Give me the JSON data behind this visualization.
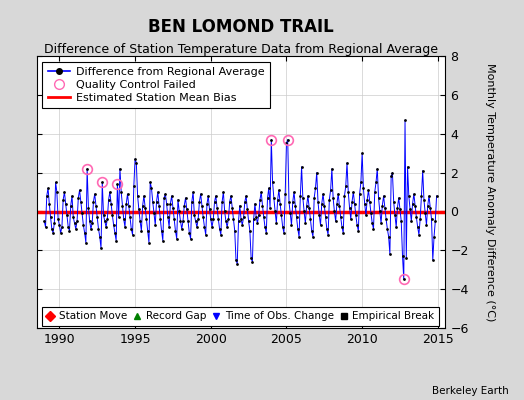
{
  "title": "BEN LOMOND TRAIL",
  "subtitle": "Difference of Station Temperature Data from Regional Average",
  "ylabel": "Monthly Temperature Anomaly Difference (°C)",
  "ylim": [
    -6,
    8
  ],
  "xlim": [
    1988.5,
    2015.5
  ],
  "xticks": [
    1990,
    1995,
    2000,
    2005,
    2010,
    2015
  ],
  "yticks": [
    -6,
    -4,
    -2,
    0,
    2,
    4,
    6,
    8
  ],
  "bias_value": -0.05,
  "background_color": "#d8d8d8",
  "plot_bg_color": "#ffffff",
  "line_color": "#0000ff",
  "bias_color": "#ff0000",
  "qc_marker_color": "#ff69b4",
  "marker_color": "#000000",
  "berkeley_earth_text": "Berkeley Earth",
  "time_series": [
    [
      1989.0,
      -0.5
    ],
    [
      1989.083,
      -0.8
    ],
    [
      1989.167,
      0.8
    ],
    [
      1989.25,
      1.2
    ],
    [
      1989.333,
      0.4
    ],
    [
      1989.417,
      -0.3
    ],
    [
      1989.5,
      -0.9
    ],
    [
      1989.583,
      -1.1
    ],
    [
      1989.667,
      -0.6
    ],
    [
      1989.75,
      1.5
    ],
    [
      1989.833,
      1.0
    ],
    [
      1989.917,
      -0.4
    ],
    [
      1990.0,
      -0.7
    ],
    [
      1990.083,
      -1.1
    ],
    [
      1990.167,
      -0.8
    ],
    [
      1990.25,
      0.6
    ],
    [
      1990.333,
      1.0
    ],
    [
      1990.417,
      0.4
    ],
    [
      1990.5,
      -0.2
    ],
    [
      1990.583,
      -0.8
    ],
    [
      1990.667,
      -1.0
    ],
    [
      1990.75,
      0.3
    ],
    [
      1990.833,
      0.8
    ],
    [
      1990.917,
      -0.3
    ],
    [
      1991.0,
      -0.6
    ],
    [
      1991.083,
      -0.9
    ],
    [
      1991.167,
      -0.5
    ],
    [
      1991.25,
      0.7
    ],
    [
      1991.333,
      1.1
    ],
    [
      1991.417,
      0.5
    ],
    [
      1991.5,
      -0.1
    ],
    [
      1991.583,
      -0.7
    ],
    [
      1991.667,
      -1.1
    ],
    [
      1991.75,
      -1.6
    ],
    [
      1991.833,
      2.2
    ],
    [
      1991.917,
      0.2
    ],
    [
      1992.0,
      -0.5
    ],
    [
      1992.083,
      -0.9
    ],
    [
      1992.167,
      -0.6
    ],
    [
      1992.25,
      0.5
    ],
    [
      1992.333,
      0.9
    ],
    [
      1992.417,
      0.3
    ],
    [
      1992.5,
      -0.3
    ],
    [
      1992.583,
      -0.9
    ],
    [
      1992.667,
      -1.3
    ],
    [
      1992.75,
      -1.9
    ],
    [
      1992.833,
      1.5
    ],
    [
      1992.917,
      -0.2
    ],
    [
      1993.0,
      -0.5
    ],
    [
      1993.083,
      -0.8
    ],
    [
      1993.167,
      -0.4
    ],
    [
      1993.25,
      0.6
    ],
    [
      1993.333,
      1.0
    ],
    [
      1993.417,
      0.4
    ],
    [
      1993.5,
      -0.2
    ],
    [
      1993.583,
      -0.7
    ],
    [
      1993.667,
      -1.1
    ],
    [
      1993.75,
      -1.5
    ],
    [
      1993.833,
      1.4
    ],
    [
      1993.917,
      -0.3
    ],
    [
      1994.0,
      2.2
    ],
    [
      1994.083,
      1.0
    ],
    [
      1994.167,
      0.3
    ],
    [
      1994.25,
      -0.4
    ],
    [
      1994.333,
      -0.8
    ],
    [
      1994.417,
      0.4
    ],
    [
      1994.5,
      0.9
    ],
    [
      1994.583,
      0.3
    ],
    [
      1994.667,
      -0.3
    ],
    [
      1994.75,
      -0.9
    ],
    [
      1994.833,
      -1.2
    ],
    [
      1994.917,
      1.3
    ],
    [
      1995.0,
      2.7
    ],
    [
      1995.083,
      2.5
    ],
    [
      1995.167,
      0.8
    ],
    [
      1995.25,
      0.1
    ],
    [
      1995.333,
      -0.5
    ],
    [
      1995.417,
      -1.0
    ],
    [
      1995.5,
      0.3
    ],
    [
      1995.583,
      0.8
    ],
    [
      1995.667,
      0.2
    ],
    [
      1995.75,
      -0.4
    ],
    [
      1995.833,
      -1.0
    ],
    [
      1995.917,
      -1.6
    ],
    [
      1996.0,
      1.5
    ],
    [
      1996.083,
      1.2
    ],
    [
      1996.167,
      0.5
    ],
    [
      1996.25,
      -0.1
    ],
    [
      1996.333,
      -0.7
    ],
    [
      1996.417,
      0.5
    ],
    [
      1996.5,
      1.0
    ],
    [
      1996.583,
      0.3
    ],
    [
      1996.667,
      -0.4
    ],
    [
      1996.75,
      -1.0
    ],
    [
      1996.833,
      -1.5
    ],
    [
      1996.917,
      0.7
    ],
    [
      1997.0,
      0.9
    ],
    [
      1997.083,
      0.4
    ],
    [
      1997.167,
      -0.3
    ],
    [
      1997.25,
      -0.8
    ],
    [
      1997.333,
      0.4
    ],
    [
      1997.417,
      0.8
    ],
    [
      1997.5,
      0.2
    ],
    [
      1997.583,
      -0.4
    ],
    [
      1997.667,
      -1.0
    ],
    [
      1997.75,
      -1.4
    ],
    [
      1997.833,
      0.6
    ],
    [
      1997.917,
      0.0
    ],
    [
      1998.0,
      -0.5
    ],
    [
      1998.083,
      -0.9
    ],
    [
      1998.167,
      -0.5
    ],
    [
      1998.25,
      0.3
    ],
    [
      1998.333,
      0.7
    ],
    [
      1998.417,
      0.1
    ],
    [
      1998.5,
      -0.5
    ],
    [
      1998.583,
      -1.1
    ],
    [
      1998.667,
      -1.4
    ],
    [
      1998.75,
      0.5
    ],
    [
      1998.833,
      1.0
    ],
    [
      1998.917,
      -0.2
    ],
    [
      1999.0,
      -0.5
    ],
    [
      1999.083,
      -0.8
    ],
    [
      1999.167,
      -0.4
    ],
    [
      1999.25,
      0.5
    ],
    [
      1999.333,
      0.9
    ],
    [
      1999.417,
      0.3
    ],
    [
      1999.5,
      -0.3
    ],
    [
      1999.583,
      -0.8
    ],
    [
      1999.667,
      -1.2
    ],
    [
      1999.75,
      0.4
    ],
    [
      1999.833,
      0.8
    ],
    [
      1999.917,
      0.1
    ],
    [
      2000.0,
      -0.4
    ],
    [
      2000.083,
      -0.8
    ],
    [
      2000.167,
      -0.4
    ],
    [
      2000.25,
      0.5
    ],
    [
      2000.333,
      0.8
    ],
    [
      2000.417,
      0.2
    ],
    [
      2000.5,
      -0.4
    ],
    [
      2000.583,
      -0.9
    ],
    [
      2000.667,
      -1.2
    ],
    [
      2000.75,
      0.5
    ],
    [
      2000.833,
      1.0
    ],
    [
      2000.917,
      0.0
    ],
    [
      2001.0,
      -0.5
    ],
    [
      2001.083,
      -0.8
    ],
    [
      2001.167,
      -0.4
    ],
    [
      2001.25,
      0.5
    ],
    [
      2001.333,
      0.8
    ],
    [
      2001.417,
      0.2
    ],
    [
      2001.5,
      -0.4
    ],
    [
      2001.583,
      -1.0
    ],
    [
      2001.667,
      -2.5
    ],
    [
      2001.75,
      -2.7
    ],
    [
      2001.833,
      -0.5
    ],
    [
      2001.917,
      0.3
    ],
    [
      2002.0,
      -0.4
    ],
    [
      2002.083,
      -0.7
    ],
    [
      2002.167,
      -0.3
    ],
    [
      2002.25,
      0.5
    ],
    [
      2002.333,
      0.8
    ],
    [
      2002.417,
      0.1
    ],
    [
      2002.5,
      -0.5
    ],
    [
      2002.583,
      -1.0
    ],
    [
      2002.667,
      -2.4
    ],
    [
      2002.75,
      -2.6
    ],
    [
      2002.833,
      -0.4
    ],
    [
      2002.917,
      0.4
    ],
    [
      2003.0,
      -0.3
    ],
    [
      2003.083,
      -0.6
    ],
    [
      2003.167,
      -0.2
    ],
    [
      2003.25,
      0.6
    ],
    [
      2003.333,
      1.0
    ],
    [
      2003.417,
      0.3
    ],
    [
      2003.5,
      -0.3
    ],
    [
      2003.583,
      -0.8
    ],
    [
      2003.667,
      -1.1
    ],
    [
      2003.75,
      0.7
    ],
    [
      2003.833,
      1.2
    ],
    [
      2003.917,
      0.2
    ],
    [
      2004.0,
      3.7
    ],
    [
      2004.083,
      1.5
    ],
    [
      2004.167,
      0.7
    ],
    [
      2004.25,
      0.0
    ],
    [
      2004.333,
      -0.6
    ],
    [
      2004.417,
      0.6
    ],
    [
      2004.5,
      1.1
    ],
    [
      2004.583,
      0.4
    ],
    [
      2004.667,
      -0.2
    ],
    [
      2004.75,
      -0.8
    ],
    [
      2004.833,
      -1.1
    ],
    [
      2004.917,
      0.9
    ],
    [
      2005.0,
      3.5
    ],
    [
      2005.083,
      3.7
    ],
    [
      2005.167,
      0.5
    ],
    [
      2005.25,
      -0.1
    ],
    [
      2005.333,
      -0.7
    ],
    [
      2005.417,
      0.5
    ],
    [
      2005.5,
      1.0
    ],
    [
      2005.583,
      0.3
    ],
    [
      2005.667,
      -0.3
    ],
    [
      2005.75,
      -0.9
    ],
    [
      2005.833,
      -1.3
    ],
    [
      2005.917,
      0.8
    ],
    [
      2006.0,
      2.3
    ],
    [
      2006.083,
      0.7
    ],
    [
      2006.167,
      0.0
    ],
    [
      2006.25,
      -0.6
    ],
    [
      2006.333,
      0.3
    ],
    [
      2006.417,
      0.8
    ],
    [
      2006.5,
      0.2
    ],
    [
      2006.583,
      -0.4
    ],
    [
      2006.667,
      -1.0
    ],
    [
      2006.75,
      -1.3
    ],
    [
      2006.833,
      0.7
    ],
    [
      2006.917,
      1.2
    ],
    [
      2007.0,
      2.0
    ],
    [
      2007.083,
      0.5
    ],
    [
      2007.167,
      -0.2
    ],
    [
      2007.25,
      -0.7
    ],
    [
      2007.333,
      0.4
    ],
    [
      2007.417,
      0.9
    ],
    [
      2007.5,
      0.3
    ],
    [
      2007.583,
      -0.3
    ],
    [
      2007.667,
      -0.9
    ],
    [
      2007.75,
      -1.2
    ],
    [
      2007.833,
      0.6
    ],
    [
      2007.917,
      1.1
    ],
    [
      2008.0,
      2.2
    ],
    [
      2008.083,
      0.7
    ],
    [
      2008.167,
      0.0
    ],
    [
      2008.25,
      -0.5
    ],
    [
      2008.333,
      0.4
    ],
    [
      2008.417,
      0.9
    ],
    [
      2008.5,
      0.3
    ],
    [
      2008.583,
      -0.3
    ],
    [
      2008.667,
      -0.8
    ],
    [
      2008.75,
      -1.1
    ],
    [
      2008.833,
      0.8
    ],
    [
      2008.917,
      1.3
    ],
    [
      2009.0,
      2.5
    ],
    [
      2009.083,
      1.0
    ],
    [
      2009.167,
      0.2
    ],
    [
      2009.25,
      -0.4
    ],
    [
      2009.333,
      0.5
    ],
    [
      2009.417,
      1.0
    ],
    [
      2009.5,
      0.4
    ],
    [
      2009.583,
      -0.2
    ],
    [
      2009.667,
      -0.7
    ],
    [
      2009.75,
      -1.0
    ],
    [
      2009.833,
      0.9
    ],
    [
      2009.917,
      1.5
    ],
    [
      2010.0,
      3.0
    ],
    [
      2010.083,
      1.2
    ],
    [
      2010.167,
      0.4
    ],
    [
      2010.25,
      -0.2
    ],
    [
      2010.333,
      0.6
    ],
    [
      2010.417,
      1.1
    ],
    [
      2010.5,
      0.5
    ],
    [
      2010.583,
      -0.1
    ],
    [
      2010.667,
      -0.6
    ],
    [
      2010.75,
      -0.9
    ],
    [
      2010.833,
      1.0
    ],
    [
      2010.917,
      1.5
    ],
    [
      2011.0,
      2.2
    ],
    [
      2011.083,
      0.7
    ],
    [
      2011.167,
      0.0
    ],
    [
      2011.25,
      -0.6
    ],
    [
      2011.333,
      0.3
    ],
    [
      2011.417,
      0.8
    ],
    [
      2011.5,
      0.2
    ],
    [
      2011.583,
      -0.4
    ],
    [
      2011.667,
      -0.9
    ],
    [
      2011.75,
      -1.3
    ],
    [
      2011.833,
      -2.2
    ],
    [
      2011.917,
      1.8
    ],
    [
      2012.0,
      2.0
    ],
    [
      2012.083,
      0.5
    ],
    [
      2012.167,
      -0.2
    ],
    [
      2012.25,
      -0.8
    ],
    [
      2012.333,
      0.2
    ],
    [
      2012.417,
      0.7
    ],
    [
      2012.5,
      0.1
    ],
    [
      2012.583,
      -0.5
    ],
    [
      2012.667,
      -2.3
    ],
    [
      2012.75,
      -3.5
    ],
    [
      2012.833,
      4.7
    ],
    [
      2012.917,
      -2.4
    ],
    [
      2013.0,
      2.3
    ],
    [
      2013.083,
      0.8
    ],
    [
      2013.167,
      0.1
    ],
    [
      2013.25,
      -0.5
    ],
    [
      2013.333,
      0.4
    ],
    [
      2013.417,
      0.9
    ],
    [
      2013.5,
      0.3
    ],
    [
      2013.583,
      -0.3
    ],
    [
      2013.667,
      -0.8
    ],
    [
      2013.75,
      -1.2
    ],
    [
      2013.833,
      -0.4
    ],
    [
      2013.917,
      0.8
    ],
    [
      2014.0,
      2.1
    ],
    [
      2014.083,
      0.6
    ],
    [
      2014.167,
      -0.1
    ],
    [
      2014.25,
      -0.7
    ],
    [
      2014.333,
      0.3
    ],
    [
      2014.417,
      0.8
    ],
    [
      2014.5,
      0.2
    ],
    [
      2014.583,
      -0.4
    ],
    [
      2014.667,
      -2.5
    ],
    [
      2014.75,
      -1.3
    ],
    [
      2014.833,
      -0.5
    ],
    [
      2014.917,
      0.8
    ]
  ],
  "qc_failed_points": [
    [
      1991.833,
      2.2
    ],
    [
      1992.833,
      1.5
    ],
    [
      1993.833,
      1.4
    ],
    [
      2004.0,
      3.7
    ],
    [
      2005.083,
      3.7
    ],
    [
      2012.75,
      -3.5
    ]
  ],
  "title_fontsize": 12,
  "subtitle_fontsize": 9,
  "tick_fontsize": 9,
  "ylabel_fontsize": 8,
  "legend_fontsize": 8
}
